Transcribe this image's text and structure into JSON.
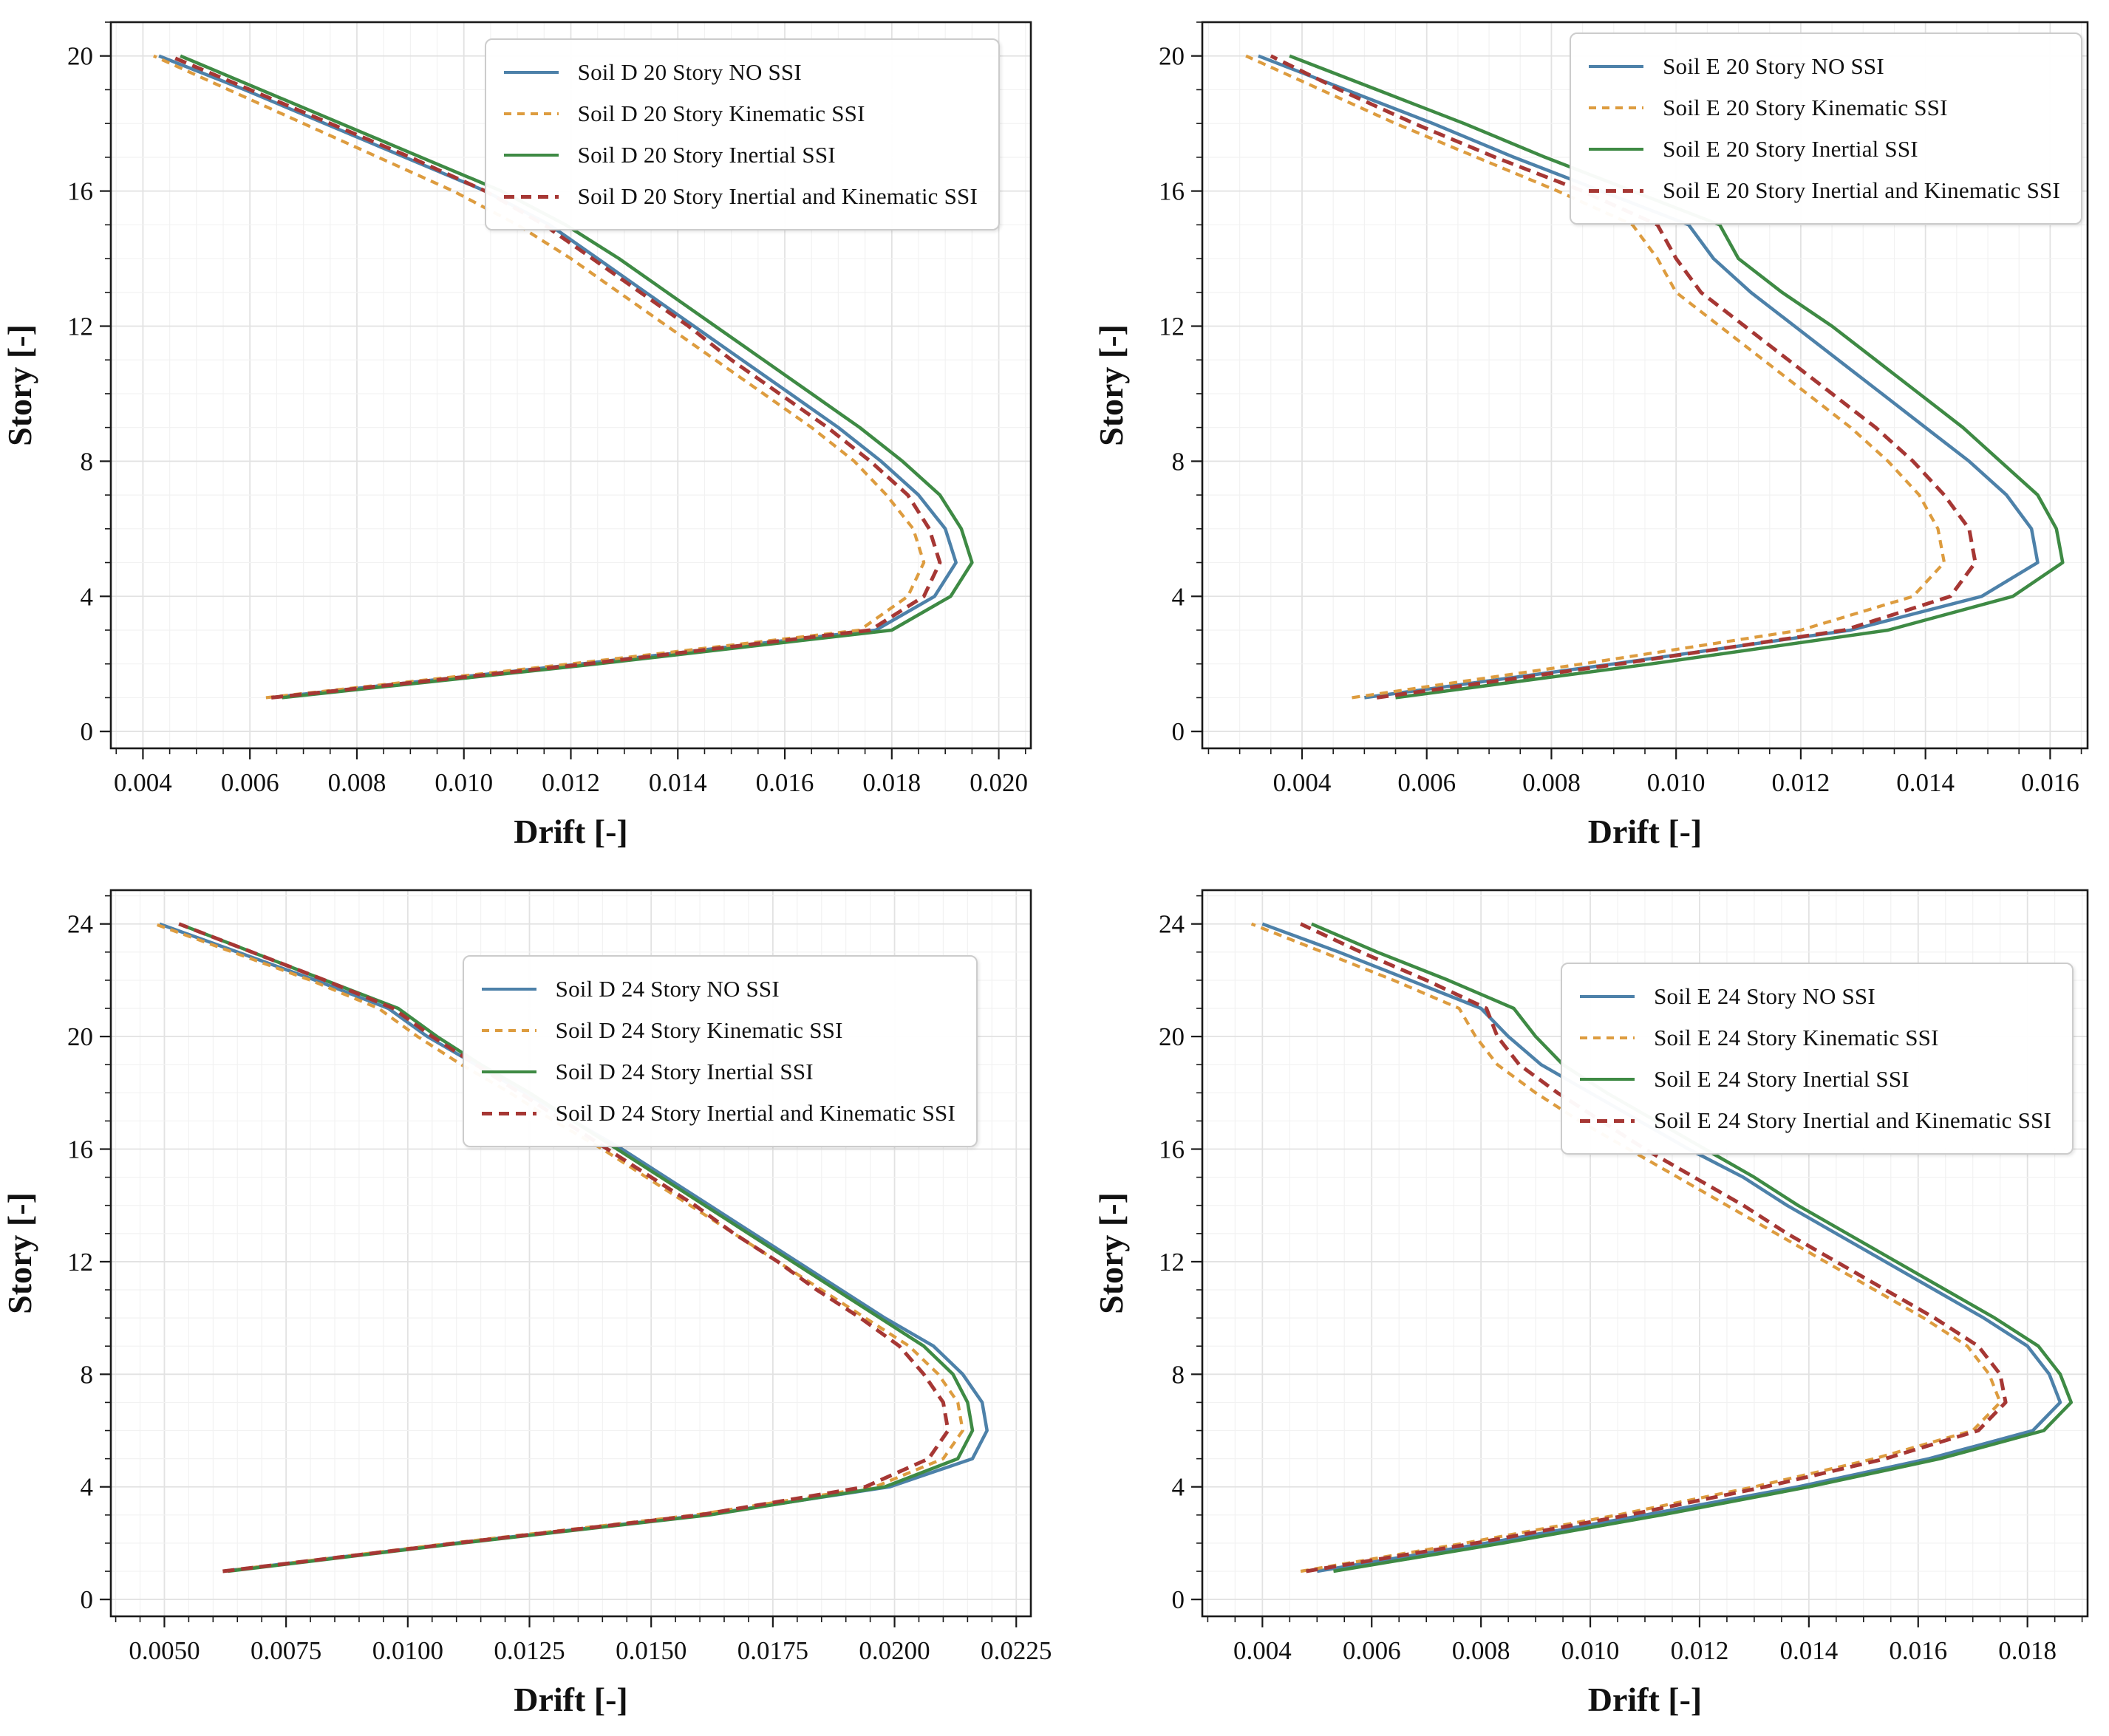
{
  "figure": {
    "background": "#ffffff",
    "frame_color": "#1a1a1a",
    "grid_major_color": "#e2e2e2",
    "grid_minor_color": "#f2f2f2"
  },
  "chart_data": [
    {
      "id": "soil-d-20-story",
      "type": "line",
      "title": "",
      "xlabel": "Drift [-]",
      "ylabel": "Story [-]",
      "xlim": [
        0.0034,
        0.0206
      ],
      "ylim": [
        -0.5,
        21.0
      ],
      "x_tick_values": [
        0.004,
        0.006,
        0.008,
        0.01,
        0.012,
        0.014,
        0.016,
        0.018,
        0.02
      ],
      "x_tick_labels": [
        "0.004",
        "0.006",
        "0.008",
        "0.010",
        "0.012",
        "0.014",
        "0.016",
        "0.018",
        "0.020"
      ],
      "x_minor_step": 0.0005,
      "y_tick_values": [
        0,
        4,
        8,
        12,
        16,
        20
      ],
      "y_minor_step": 1,
      "grid": true,
      "legend_position": "top-right",
      "stories": [
        1,
        2,
        3,
        4,
        5,
        6,
        7,
        8,
        9,
        10,
        11,
        12,
        13,
        14,
        15,
        16,
        17,
        18,
        19,
        20
      ],
      "series": [
        {
          "name": "Soil D 20 Story NO SSI",
          "color": "#4d81a9",
          "style": "solid",
          "values": [
            0.0064,
            0.0122,
            0.0177,
            0.0188,
            0.0192,
            0.019,
            0.0185,
            0.0178,
            0.017,
            0.0161,
            0.0152,
            0.0143,
            0.0134,
            0.0125,
            0.0116,
            0.0104,
            0.0089,
            0.0074,
            0.0059,
            0.0043
          ]
        },
        {
          "name": "Soil D 20 Story Kinematic SSI",
          "color": "#dd9c3f",
          "style": "dashed",
          "values": [
            0.0063,
            0.012,
            0.0174,
            0.0183,
            0.0186,
            0.0184,
            0.0179,
            0.0173,
            0.0165,
            0.0156,
            0.0147,
            0.0138,
            0.0129,
            0.012,
            0.011,
            0.0098,
            0.0084,
            0.007,
            0.0056,
            0.0042
          ]
        },
        {
          "name": "Soil D 20 Story Inertial SSI",
          "color": "#3e8a44",
          "style": "solid",
          "values": [
            0.0066,
            0.0125,
            0.018,
            0.0191,
            0.0195,
            0.0193,
            0.0189,
            0.0182,
            0.0174,
            0.0165,
            0.0156,
            0.0147,
            0.0138,
            0.0129,
            0.0119,
            0.0107,
            0.0092,
            0.0077,
            0.0062,
            0.0047
          ]
        },
        {
          "name": "Soil D 20 Story Inertial and Kinematic SSI",
          "color": "#a63734",
          "style": "dashed",
          "values": [
            0.0064,
            0.0123,
            0.0176,
            0.0186,
            0.0189,
            0.0187,
            0.0183,
            0.0176,
            0.0168,
            0.0159,
            0.015,
            0.0142,
            0.0133,
            0.0124,
            0.0115,
            0.0104,
            0.009,
            0.0075,
            0.006,
            0.0045
          ]
        }
      ]
    },
    {
      "id": "soil-e-20-story",
      "type": "line",
      "title": "",
      "xlabel": "Drift [-]",
      "ylabel": "Story [-]",
      "xlim": [
        0.0024,
        0.0166
      ],
      "ylim": [
        -0.5,
        21.0
      ],
      "x_tick_values": [
        0.004,
        0.006,
        0.008,
        0.01,
        0.012,
        0.014,
        0.016
      ],
      "x_tick_labels": [
        "0.004",
        "0.006",
        "0.008",
        "0.010",
        "0.012",
        "0.014",
        "0.016"
      ],
      "x_minor_step": 0.0005,
      "y_tick_values": [
        0,
        4,
        8,
        12,
        16,
        20
      ],
      "y_minor_step": 1,
      "grid": true,
      "legend_position": "top-right",
      "stories": [
        1,
        2,
        3,
        4,
        5,
        6,
        7,
        8,
        9,
        10,
        11,
        12,
        13,
        14,
        15,
        16,
        17,
        18,
        19,
        20
      ],
      "series": [
        {
          "name": "Soil E 20 Story NO SSI",
          "color": "#4d81a9",
          "style": "solid",
          "values": [
            0.005,
            0.009,
            0.0128,
            0.0149,
            0.0158,
            0.0157,
            0.0153,
            0.0147,
            0.014,
            0.0133,
            0.0126,
            0.0119,
            0.0112,
            0.0106,
            0.0102,
            0.0088,
            0.0074,
            0.0061,
            0.0047,
            0.0033
          ]
        },
        {
          "name": "Soil E 20 Story Kinematic SSI",
          "color": "#dd9c3f",
          "style": "dashed",
          "values": [
            0.0048,
            0.0085,
            0.012,
            0.0138,
            0.0143,
            0.0142,
            0.0139,
            0.0134,
            0.0128,
            0.0121,
            0.0114,
            0.0107,
            0.01,
            0.0097,
            0.0093,
            0.0081,
            0.0068,
            0.0055,
            0.0043,
            0.0031
          ]
        },
        {
          "name": "Soil E 20 Story Inertial SSI",
          "color": "#3e8a44",
          "style": "solid",
          "values": [
            0.0055,
            0.0096,
            0.0134,
            0.0154,
            0.0162,
            0.0161,
            0.0158,
            0.0152,
            0.0146,
            0.0139,
            0.0132,
            0.0125,
            0.0117,
            0.011,
            0.0107,
            0.0093,
            0.0079,
            0.0066,
            0.0052,
            0.0038
          ]
        },
        {
          "name": "Soil E 20 Story Inertial and Kinematic SSI",
          "color": "#a63734",
          "style": "dashed",
          "values": [
            0.0052,
            0.0091,
            0.0127,
            0.0144,
            0.0148,
            0.0147,
            0.0143,
            0.0138,
            0.0132,
            0.0125,
            0.0118,
            0.0111,
            0.0104,
            0.01,
            0.0097,
            0.0085,
            0.0071,
            0.0058,
            0.0046,
            0.0035
          ]
        }
      ]
    },
    {
      "id": "soil-d-24-story",
      "type": "line",
      "title": "",
      "xlabel": "Drift [-]",
      "ylabel": "Story [-]",
      "xlim": [
        0.0039,
        0.0228
      ],
      "ylim": [
        -0.6,
        25.2
      ],
      "x_tick_values": [
        0.005,
        0.0075,
        0.01,
        0.0125,
        0.015,
        0.0175,
        0.02,
        0.0225
      ],
      "x_tick_labels": [
        "0.0050",
        "0.0075",
        "0.0100",
        "0.0125",
        "0.0150",
        "0.0175",
        "0.0200",
        "0.0225"
      ],
      "x_minor_step": 0.0005,
      "y_tick_values": [
        0,
        4,
        8,
        12,
        16,
        20,
        24
      ],
      "y_minor_step": 1,
      "grid": true,
      "legend_position": "top-right",
      "stories": [
        1,
        2,
        3,
        4,
        5,
        6,
        7,
        8,
        9,
        10,
        11,
        12,
        13,
        14,
        15,
        16,
        17,
        18,
        19,
        20,
        21,
        22,
        23,
        24
      ],
      "series": [
        {
          "name": "Soil D 24 Story NO SSI",
          "color": "#4d81a9",
          "style": "solid",
          "values": [
            0.0062,
            0.011,
            0.0161,
            0.0199,
            0.0216,
            0.0219,
            0.0218,
            0.0214,
            0.0208,
            0.0198,
            0.0189,
            0.018,
            0.0171,
            0.0162,
            0.0153,
            0.0144,
            0.0134,
            0.0124,
            0.0114,
            0.0104,
            0.0096,
            0.0081,
            0.0065,
            0.0049
          ]
        },
        {
          "name": "Soil D 24 Story Kinematic SSI",
          "color": "#dd9c3f",
          "style": "dashed",
          "values": [
            0.0062,
            0.0109,
            0.0159,
            0.0196,
            0.021,
            0.0214,
            0.0213,
            0.0209,
            0.0203,
            0.0194,
            0.0185,
            0.0176,
            0.0167,
            0.0158,
            0.0149,
            0.014,
            0.013,
            0.0121,
            0.0111,
            0.0102,
            0.0094,
            0.008,
            0.0064,
            0.0048
          ]
        },
        {
          "name": "Soil D 24 Story Inertial SSI",
          "color": "#3e8a44",
          "style": "solid",
          "values": [
            0.0063,
            0.0111,
            0.0162,
            0.0198,
            0.0213,
            0.0216,
            0.0215,
            0.0212,
            0.0206,
            0.0197,
            0.0188,
            0.0179,
            0.017,
            0.0161,
            0.0152,
            0.0143,
            0.0134,
            0.0125,
            0.0115,
            0.0106,
            0.0098,
            0.0083,
            0.0068,
            0.0053
          ]
        },
        {
          "name": "Soil D 24 Story Inertial and Kinematic SSI",
          "color": "#a63734",
          "style": "dashed",
          "values": [
            0.0062,
            0.011,
            0.016,
            0.0194,
            0.0207,
            0.0211,
            0.021,
            0.0206,
            0.0201,
            0.0193,
            0.0184,
            0.0176,
            0.0167,
            0.0159,
            0.015,
            0.0141,
            0.0132,
            0.0123,
            0.0114,
            0.0105,
            0.0097,
            0.0083,
            0.0068,
            0.0053
          ]
        }
      ]
    },
    {
      "id": "soil-e-24-story",
      "type": "line",
      "title": "",
      "xlabel": "Drift [-]",
      "ylabel": "Story [-]",
      "xlim": [
        0.0029,
        0.0191
      ],
      "ylim": [
        -0.6,
        25.2
      ],
      "x_tick_values": [
        0.004,
        0.006,
        0.008,
        0.01,
        0.012,
        0.014,
        0.016,
        0.018
      ],
      "x_tick_labels": [
        "0.004",
        "0.006",
        "0.008",
        "0.010",
        "0.012",
        "0.014",
        "0.016",
        "0.018"
      ],
      "x_minor_step": 0.0005,
      "y_tick_values": [
        0,
        4,
        8,
        12,
        16,
        20,
        24
      ],
      "y_minor_step": 1,
      "grid": true,
      "legend_position": "top-right",
      "stories": [
        1,
        2,
        3,
        4,
        5,
        6,
        7,
        8,
        9,
        10,
        11,
        12,
        13,
        14,
        15,
        16,
        17,
        18,
        19,
        20,
        21,
        22,
        23,
        24
      ],
      "series": [
        {
          "name": "Soil E 24 Story NO SSI",
          "color": "#4d81a9",
          "style": "solid",
          "values": [
            0.005,
            0.0081,
            0.011,
            0.0138,
            0.0162,
            0.0181,
            0.0186,
            0.0184,
            0.018,
            0.0172,
            0.0163,
            0.0154,
            0.0145,
            0.0136,
            0.0128,
            0.0118,
            0.0109,
            0.01,
            0.0091,
            0.0085,
            0.008,
            0.0067,
            0.0054,
            0.004
          ]
        },
        {
          "name": "Soil E 24 Story Kinematic SSI",
          "color": "#dd9c3f",
          "style": "dashed",
          "values": [
            0.0047,
            0.0077,
            0.0105,
            0.013,
            0.0152,
            0.017,
            0.0175,
            0.0173,
            0.0169,
            0.0161,
            0.0152,
            0.0143,
            0.0134,
            0.0125,
            0.0116,
            0.0107,
            0.0098,
            0.009,
            0.0083,
            0.0079,
            0.0076,
            0.0064,
            0.0051,
            0.0038
          ]
        },
        {
          "name": "Soil E 24 Story Inertial SSI",
          "color": "#3e8a44",
          "style": "solid",
          "values": [
            0.0053,
            0.0084,
            0.0113,
            0.014,
            0.0164,
            0.0183,
            0.0188,
            0.0186,
            0.0182,
            0.0174,
            0.0165,
            0.0156,
            0.0147,
            0.0138,
            0.013,
            0.0121,
            0.0112,
            0.0103,
            0.0095,
            0.009,
            0.0086,
            0.0074,
            0.0061,
            0.0049
          ]
        },
        {
          "name": "Soil E 24 Story Inertial and Kinematic SSI",
          "color": "#a63734",
          "style": "dashed",
          "values": [
            0.0048,
            0.0079,
            0.0107,
            0.0132,
            0.0154,
            0.0171,
            0.0176,
            0.0175,
            0.0171,
            0.0163,
            0.0154,
            0.0145,
            0.0136,
            0.0128,
            0.0119,
            0.011,
            0.0102,
            0.0094,
            0.0087,
            0.0083,
            0.0081,
            0.007,
            0.0058,
            0.0047
          ]
        }
      ]
    }
  ]
}
